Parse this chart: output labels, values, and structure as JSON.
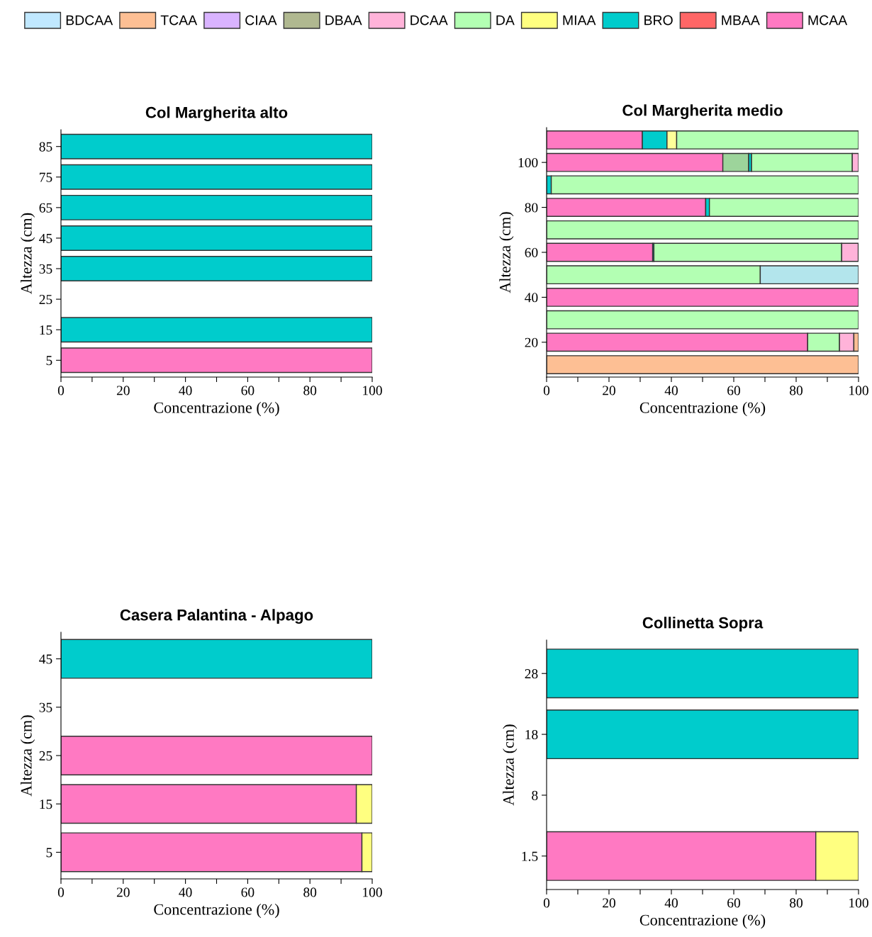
{
  "chart_data": [
    {
      "type": "bar",
      "orientation": "horizontal",
      "stacked": true,
      "title": "Col Margherita alto",
      "xlabel": "Concentrazione (%)",
      "ylabel": "Altezza (cm)",
      "legend": "top",
      "categories": [
        "85",
        "75",
        "65",
        "45",
        "35",
        "25",
        "15",
        "5"
      ],
      "xlim": [
        0,
        100
      ],
      "xticks": [
        0,
        {
          "value": 10,
          "label": null
        },
        20,
        {
          "value": 30,
          "label": null
        },
        40,
        {
          "value": 50,
          "label": null
        },
        60,
        {
          "value": 70,
          "label": null
        },
        80,
        {
          "value": 90,
          "label": null
        },
        100
      ],
      "series": [
        {
          "name": "BDCAA",
          "color": "#c0e8ff",
          "values": [
            null,
            null,
            null,
            null,
            null,
            null,
            null,
            null
          ]
        },
        {
          "name": "TCAA",
          "color": "#fdbf94",
          "values": [
            null,
            null,
            null,
            null,
            null,
            null,
            null,
            null
          ]
        },
        {
          "name": "CIAA",
          "color": "#d9b3ff",
          "values": [
            null,
            null,
            null,
            null,
            null,
            null,
            null,
            null
          ]
        },
        {
          "name": "DBAA",
          "color": "#b0b890",
          "values": [
            null,
            null,
            null,
            null,
            null,
            null,
            null,
            null
          ]
        },
        {
          "name": "DCAA",
          "color": "#ffb3d9",
          "values": [
            null,
            null,
            null,
            null,
            null,
            null,
            null,
            null
          ]
        },
        {
          "name": "DA",
          "color": "#b3ffb3",
          "values": [
            null,
            null,
            null,
            null,
            null,
            null,
            null,
            null
          ]
        },
        {
          "name": "MIAA",
          "color": "#ffff80",
          "values": [
            null,
            null,
            null,
            null,
            null,
            null,
            null,
            null
          ]
        },
        {
          "name": "BRO",
          "color": "#00cccc",
          "values": [
            100,
            100,
            100,
            100,
            100,
            null,
            100,
            null
          ]
        },
        {
          "name": "MBAA",
          "color": "#ff6666",
          "values": [
            null,
            null,
            null,
            null,
            null,
            null,
            null,
            null
          ]
        },
        {
          "name": "MCAA",
          "color": "#ff79c2",
          "values": [
            null,
            null,
            null,
            null,
            null,
            null,
            null,
            100
          ]
        }
      ]
    },
    {
      "type": "bar",
      "orientation": "horizontal",
      "stacked": true,
      "title": "Col Margherita medio",
      "xlabel": "Concentrazione (%)",
      "ylabel": "Altezza (cm)",
      "categories": [
        null,
        "100",
        null,
        "80",
        null,
        "60",
        null,
        "40",
        null,
        "20",
        null
      ],
      "xlim": [
        0,
        100
      ],
      "xticks": [
        0,
        {
          "value": 10,
          "label": null
        },
        20,
        {
          "value": 30,
          "label": null
        },
        40,
        {
          "value": 50,
          "label": null
        },
        60,
        {
          "value": 70,
          "label": null
        },
        80,
        {
          "value": 90,
          "label": null
        },
        100
      ],
      "series": [
        {
          "color": "#ff79c2",
          "values": [
            30.7,
            56.5,
            null,
            51,
            null,
            34,
            null,
            100,
            null,
            83.7,
            null
          ]
        },
        {
          "color": "#9dd49b",
          "values": [
            null,
            8.3,
            null,
            null,
            null,
            null,
            null,
            null,
            null,
            null,
            null
          ]
        },
        {
          "color": "#00cccc",
          "values": [
            7.9,
            0.9,
            1.5,
            1.2,
            null,
            0.4,
            null,
            null,
            null,
            null,
            null
          ]
        },
        {
          "color": "#ffff99",
          "values": [
            3.1,
            null,
            null,
            null,
            null,
            null,
            null,
            null,
            null,
            null,
            null
          ]
        },
        {
          "color": "#b3ffb3",
          "values": [
            58.3,
            32.3,
            98.5,
            47.8,
            100,
            60.2,
            68.5,
            null,
            100,
            10.2,
            null
          ]
        },
        {
          "color": "#ffb3d9",
          "values": [
            null,
            2,
            null,
            null,
            null,
            5.3,
            null,
            null,
            null,
            4.6,
            null
          ]
        },
        {
          "color": "#fdbf94",
          "values": [
            null,
            null,
            null,
            null,
            null,
            null,
            null,
            null,
            null,
            1.5,
            100
          ]
        },
        {
          "color": "#b3e5ec",
          "values": [
            null,
            null,
            null,
            null,
            null,
            null,
            31.5,
            null,
            null,
            null,
            null
          ]
        }
      ]
    },
    {
      "type": "bar",
      "orientation": "horizontal",
      "stacked": true,
      "title": "Casera Palantina - Alpago",
      "xlabel": "Concentrazione (%)",
      "ylabel": "Altezza (cm)",
      "categories": [
        "45",
        "35",
        "25",
        "15",
        "5"
      ],
      "xlim": [
        0,
        100
      ],
      "xticks": [
        0,
        {
          "value": 10,
          "label": null
        },
        20,
        {
          "value": 30,
          "label": null
        },
        40,
        {
          "value": 50,
          "label": null
        },
        60,
        {
          "value": 70,
          "label": null
        },
        80,
        {
          "value": 90,
          "label": null
        },
        100
      ],
      "series": [
        {
          "color": "#00cccc",
          "values": [
            100,
            null,
            null,
            null,
            null
          ]
        },
        {
          "color": "#ff79c2",
          "values": [
            null,
            null,
            100,
            94.9,
            96.7
          ]
        },
        {
          "color": "#ffff80",
          "values": [
            null,
            null,
            null,
            5.1,
            3.3
          ]
        }
      ]
    },
    {
      "type": "bar",
      "orientation": "horizontal",
      "stacked": true,
      "title": "Collinetta Sopra",
      "xlabel": "Concentrazione (%)",
      "ylabel": "Altezza (cm)",
      "categories": [
        "28",
        "18",
        "8",
        "1.5"
      ],
      "xlim": [
        0,
        100
      ],
      "xticks": [
        0,
        {
          "value": 10,
          "label": null
        },
        20,
        {
          "value": 30,
          "label": null
        },
        40,
        {
          "value": 50,
          "label": null
        },
        60,
        {
          "value": 70,
          "label": null
        },
        80,
        {
          "value": 90,
          "label": null
        },
        100
      ],
      "series": [
        {
          "color": "#00cccc",
          "values": [
            100,
            100,
            null,
            null
          ]
        },
        {
          "color": "#ff79c2",
          "values": [
            null,
            null,
            null,
            86.3
          ]
        },
        {
          "color": "#ffff80",
          "values": [
            null,
            null,
            null,
            13.7
          ]
        }
      ]
    }
  ]
}
